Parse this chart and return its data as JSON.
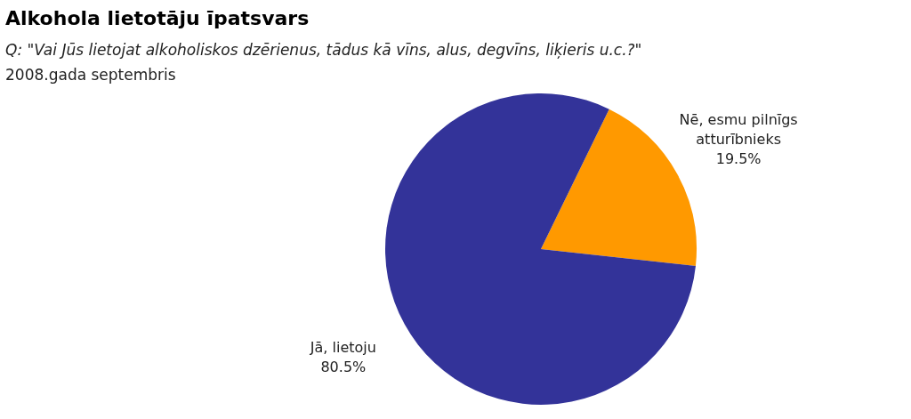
{
  "chart_data": {
    "type": "pie",
    "title": "Alkohola lietotāju īpatsvars",
    "subtitle": "Q: \"Vai Jūs lietojat alkoholiskos dzērienus, tādus kā vīns, alus, degvīns, liķieris u.c.?\"",
    "annotations": [
      "2008.gada septembris"
    ],
    "categories": [
      "Nē, esmu pilnīgs atturībnieks",
      "Jā, lietoju"
    ],
    "values": [
      19.5,
      80.5
    ],
    "colors": [
      "#ff9900",
      "#333399"
    ],
    "value_labels": [
      "19.5%",
      "80.5%"
    ],
    "legend": false
  }
}
